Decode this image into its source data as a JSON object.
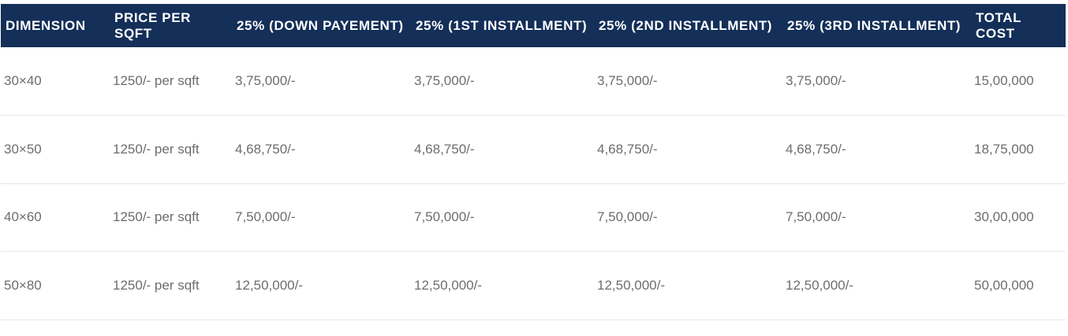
{
  "table": {
    "headers": [
      "DIMENSION",
      "PRICE PER SQFT",
      "25% (DOWN PAYEMENT)",
      "25% (1ST INSTALLMENT)",
      "25% (2ND INSTALLMENT)",
      "25% (3RD INSTALLMENT)",
      "TOTAL COST"
    ],
    "rows": [
      [
        "30×40",
        "1250/- per sqft",
        "3,75,000/-",
        "3,75,000/-",
        "3,75,000/-",
        "3,75,000/-",
        "15,00,000"
      ],
      [
        "30×50",
        "1250/- per sqft",
        "4,68,750/-",
        "4,68,750/-",
        "4,68,750/-",
        "4,68,750/-",
        "18,75,000"
      ],
      [
        "40×60",
        "1250/- per sqft",
        "7,50,000/-",
        "7,50,000/-",
        "7,50,000/-",
        "7,50,000/-",
        "30,00,000"
      ],
      [
        "50×80",
        "1250/- per sqft",
        "12,50,000/-",
        "12,50,000/-",
        "12,50,000/-",
        "12,50,000/-",
        "50,00,000"
      ]
    ]
  },
  "colors": {
    "header_bg": "#142f58",
    "header_text": "#ffffff",
    "cell_text": "#6d6d6d",
    "row_border": "#e6e6e6"
  }
}
